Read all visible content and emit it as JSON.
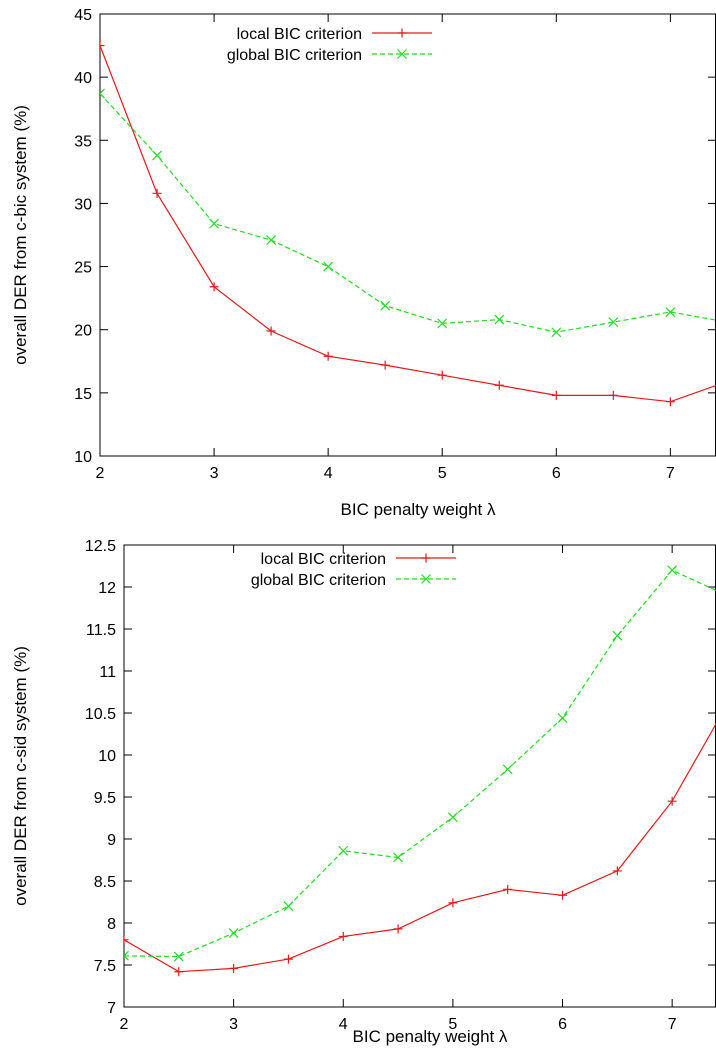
{
  "chart_data": [
    {
      "type": "line",
      "xlabel": "BIC penalty weight λ",
      "ylabel": "overall DER from c-bic system (%)",
      "xlim": [
        2,
        7.4
      ],
      "ylim": [
        10,
        45
      ],
      "xticks": [
        2,
        3,
        4,
        5,
        6,
        7
      ],
      "yticks": [
        10,
        15,
        20,
        25,
        30,
        35,
        40,
        45
      ],
      "legend_position": "top-left",
      "grid": false,
      "series": [
        {
          "name": "local BIC criterion",
          "color": "#e31a1c",
          "style": "solid",
          "marker": "plus",
          "x": [
            2,
            2.5,
            3,
            3.5,
            4,
            4.5,
            5,
            5.5,
            6,
            6.5,
            7,
            7.5
          ],
          "y": [
            42.5,
            30.8,
            23.4,
            19.9,
            17.9,
            17.2,
            16.4,
            15.6,
            14.8,
            14.8,
            14.3,
            15.9
          ]
        },
        {
          "name": "global BIC criterion",
          "color": "#22dd22",
          "style": "dashed",
          "marker": "cross",
          "x": [
            2,
            2.5,
            3,
            3.5,
            4,
            4.5,
            5,
            5.5,
            6,
            6.5,
            7,
            7.5
          ],
          "y": [
            38.7,
            33.8,
            28.4,
            27.1,
            25.0,
            21.9,
            20.5,
            20.8,
            19.8,
            20.6,
            21.4,
            20.6
          ]
        }
      ]
    },
    {
      "type": "line",
      "xlabel": "BIC penalty weight λ",
      "ylabel": "overall DER from c-sid system (%)",
      "xlim": [
        2,
        7.4
      ],
      "ylim": [
        7,
        12.5
      ],
      "xticks": [
        2,
        3,
        4,
        5,
        6,
        7
      ],
      "yticks": [
        7,
        7.5,
        8,
        8.5,
        9,
        9.5,
        10,
        10.5,
        11,
        11.5,
        12,
        12.5
      ],
      "legend_position": "top-left",
      "grid": false,
      "series": [
        {
          "name": "local BIC criterion",
          "color": "#e31a1c",
          "style": "solid",
          "marker": "plus",
          "x": [
            2,
            2.5,
            3,
            3.5,
            4,
            4.5,
            5,
            5.5,
            6,
            6.5,
            7,
            7.5
          ],
          "y": [
            7.8,
            7.42,
            7.46,
            7.57,
            7.84,
            7.93,
            8.24,
            8.4,
            8.33,
            8.62,
            9.45,
            10.6
          ]
        },
        {
          "name": "global BIC criterion",
          "color": "#22dd22",
          "style": "dashed",
          "marker": "cross",
          "x": [
            2,
            2.5,
            3,
            3.5,
            4,
            4.5,
            5,
            5.5,
            6,
            6.5,
            7,
            7.5
          ],
          "y": [
            7.61,
            7.6,
            7.88,
            8.2,
            8.86,
            8.78,
            9.26,
            9.83,
            10.44,
            11.42,
            12.2,
            11.9
          ]
        }
      ]
    }
  ]
}
